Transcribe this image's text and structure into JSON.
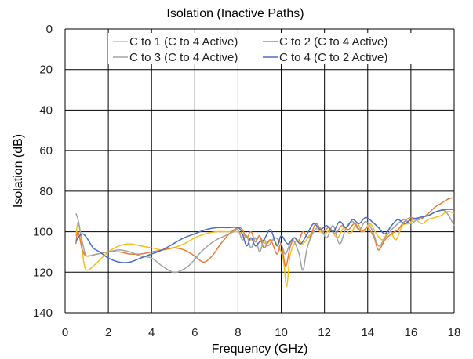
{
  "chart_data": {
    "type": "line",
    "title": "Isolation (Inactive Paths)",
    "xlabel": "Frequency (GHz)",
    "ylabel": "Isolation (dB)",
    "xlim": [
      0,
      18
    ],
    "ylim": [
      0,
      140
    ],
    "y_inverted": true,
    "x_ticks": [
      0,
      2,
      4,
      6,
      8,
      10,
      12,
      14,
      16,
      18
    ],
    "y_ticks": [
      0,
      20,
      40,
      60,
      80,
      100,
      120,
      140
    ],
    "grid": true,
    "legend_position": "top",
    "series": [
      {
        "name": "C to 1 (C to 4 Active)",
        "color": "#f2c01c",
        "points": [
          [
            0.5,
            102
          ],
          [
            0.6,
            95
          ],
          [
            0.7,
            100
          ],
          [
            0.8,
            110
          ],
          [
            0.9,
            117
          ],
          [
            1.0,
            119
          ],
          [
            1.2,
            118
          ],
          [
            1.5,
            115
          ],
          [
            2.0,
            110
          ],
          [
            2.5,
            107
          ],
          [
            3.0,
            106
          ],
          [
            3.5,
            107
          ],
          [
            4.0,
            108
          ],
          [
            4.5,
            109
          ],
          [
            5.0,
            108
          ],
          [
            5.5,
            106
          ],
          [
            6.0,
            103
          ],
          [
            6.5,
            101
          ],
          [
            7.0,
            100
          ],
          [
            7.5,
            100
          ],
          [
            8.0,
            100
          ],
          [
            8.3,
            102
          ],
          [
            8.6,
            104
          ],
          [
            9.0,
            103
          ],
          [
            9.3,
            106
          ],
          [
            9.6,
            104
          ],
          [
            9.9,
            108
          ],
          [
            10.1,
            114
          ],
          [
            10.25,
            127
          ],
          [
            10.4,
            112
          ],
          [
            10.6,
            106
          ],
          [
            10.8,
            104
          ],
          [
            11.0,
            106
          ],
          [
            11.3,
            102
          ],
          [
            11.6,
            99
          ],
          [
            12.0,
            101
          ],
          [
            12.3,
            99
          ],
          [
            12.6,
            103
          ],
          [
            12.9,
            98
          ],
          [
            13.2,
            101
          ],
          [
            13.5,
            96
          ],
          [
            13.8,
            100
          ],
          [
            14.1,
            96
          ],
          [
            14.4,
            101
          ],
          [
            14.7,
            104
          ],
          [
            15.0,
            99
          ],
          [
            15.3,
            104
          ],
          [
            15.6,
            97
          ],
          [
            15.9,
            96
          ],
          [
            16.2,
            94
          ],
          [
            16.5,
            96
          ],
          [
            16.8,
            94
          ],
          [
            17.1,
            93
          ],
          [
            17.4,
            92
          ],
          [
            17.7,
            90
          ],
          [
            18.0,
            91
          ]
        ]
      },
      {
        "name": "C to 2 (C to 4 Active)",
        "color": "#e87b35",
        "points": [
          [
            0.5,
            106
          ],
          [
            0.6,
            100
          ],
          [
            0.8,
            109
          ],
          [
            1.0,
            112
          ],
          [
            1.5,
            111
          ],
          [
            2.0,
            110
          ],
          [
            2.5,
            110
          ],
          [
            3.0,
            111
          ],
          [
            3.5,
            111
          ],
          [
            4.0,
            110
          ],
          [
            4.5,
            109
          ],
          [
            5.0,
            108
          ],
          [
            5.5,
            109
          ],
          [
            6.0,
            112
          ],
          [
            6.4,
            115
          ],
          [
            6.8,
            112
          ],
          [
            7.2,
            106
          ],
          [
            7.6,
            101
          ],
          [
            8.0,
            98
          ],
          [
            8.2,
            99
          ],
          [
            8.4,
            103
          ],
          [
            8.6,
            100
          ],
          [
            8.8,
            105
          ],
          [
            9.0,
            102
          ],
          [
            9.2,
            108
          ],
          [
            9.5,
            104
          ],
          [
            9.8,
            111
          ],
          [
            10.0,
            106
          ],
          [
            10.2,
            117
          ],
          [
            10.4,
            108
          ],
          [
            10.6,
            103
          ],
          [
            10.8,
            105
          ],
          [
            11.0,
            100
          ],
          [
            11.3,
            103
          ],
          [
            11.6,
            96
          ],
          [
            11.9,
            100
          ],
          [
            12.2,
            98
          ],
          [
            12.5,
            101
          ],
          [
            12.8,
            97
          ],
          [
            13.1,
            99
          ],
          [
            13.4,
            96
          ],
          [
            13.7,
            100
          ],
          [
            14.0,
            98
          ],
          [
            14.3,
            103
          ],
          [
            14.5,
            109
          ],
          [
            14.8,
            104
          ],
          [
            15.1,
            101
          ],
          [
            15.4,
            99
          ],
          [
            15.7,
            95
          ],
          [
            16.0,
            93
          ],
          [
            16.4,
            94
          ],
          [
            16.8,
            91
          ],
          [
            17.1,
            88
          ],
          [
            17.4,
            86
          ],
          [
            17.7,
            84
          ],
          [
            18.0,
            83
          ]
        ]
      },
      {
        "name": "C to 3 (C to 4 Active)",
        "color": "#a3a3a3",
        "points": [
          [
            0.5,
            91
          ],
          [
            0.6,
            94
          ],
          [
            0.7,
            100
          ],
          [
            0.9,
            110
          ],
          [
            1.0,
            112
          ],
          [
            1.5,
            111
          ],
          [
            2.0,
            110
          ],
          [
            2.5,
            109
          ],
          [
            3.0,
            110
          ],
          [
            3.5,
            112
          ],
          [
            4.0,
            113
          ],
          [
            4.5,
            117
          ],
          [
            5.0,
            120
          ],
          [
            5.4,
            119
          ],
          [
            5.8,
            116
          ],
          [
            6.2,
            111
          ],
          [
            6.6,
            107
          ],
          [
            7.0,
            104
          ],
          [
            7.4,
            102
          ],
          [
            7.8,
            100
          ],
          [
            8.0,
            99
          ],
          [
            8.2,
            104
          ],
          [
            8.4,
            102
          ],
          [
            8.6,
            108
          ],
          [
            8.8,
            103
          ],
          [
            9.0,
            110
          ],
          [
            9.2,
            104
          ],
          [
            9.4,
            107
          ],
          [
            9.7,
            103
          ],
          [
            10.0,
            106
          ],
          [
            10.2,
            111
          ],
          [
            10.5,
            104
          ],
          [
            10.8,
            110
          ],
          [
            11.0,
            119
          ],
          [
            11.2,
            108
          ],
          [
            11.5,
            100
          ],
          [
            11.8,
            98
          ],
          [
            12.1,
            103
          ],
          [
            12.4,
            97
          ],
          [
            12.7,
            106
          ],
          [
            13.0,
            98
          ],
          [
            13.3,
            95
          ],
          [
            13.6,
            99
          ],
          [
            13.9,
            95
          ],
          [
            14.2,
            99
          ],
          [
            14.5,
            107
          ],
          [
            14.8,
            103
          ],
          [
            15.1,
            99
          ],
          [
            15.4,
            96
          ],
          [
            15.7,
            94
          ],
          [
            16.0,
            96
          ],
          [
            16.4,
            93
          ],
          [
            16.8,
            92
          ],
          [
            17.2,
            90
          ],
          [
            17.6,
            90
          ],
          [
            18.0,
            97
          ]
        ]
      },
      {
        "name": "C to 4 (C to 2 Active)",
        "color": "#4b6ec4",
        "points": [
          [
            0.5,
            105
          ],
          [
            0.6,
            103
          ],
          [
            0.8,
            101
          ],
          [
            1.0,
            103
          ],
          [
            1.3,
            108
          ],
          [
            1.6,
            110
          ],
          [
            2.0,
            113
          ],
          [
            2.5,
            115
          ],
          [
            3.0,
            115
          ],
          [
            3.5,
            113
          ],
          [
            4.0,
            111
          ],
          [
            4.5,
            109
          ],
          [
            5.0,
            106
          ],
          [
            5.5,
            103
          ],
          [
            6.0,
            101
          ],
          [
            6.5,
            99
          ],
          [
            7.0,
            98
          ],
          [
            7.5,
            98
          ],
          [
            8.0,
            98
          ],
          [
            8.2,
            101
          ],
          [
            8.4,
            107
          ],
          [
            8.6,
            103
          ],
          [
            8.8,
            107
          ],
          [
            9.0,
            105
          ],
          [
            9.2,
            104
          ],
          [
            9.5,
            99
          ],
          [
            9.8,
            107
          ],
          [
            10.0,
            102
          ],
          [
            10.3,
            106
          ],
          [
            10.6,
            103
          ],
          [
            10.9,
            106
          ],
          [
            11.2,
            101
          ],
          [
            11.5,
            96
          ],
          [
            11.8,
            99
          ],
          [
            12.1,
            97
          ],
          [
            12.4,
            100
          ],
          [
            12.7,
            95
          ],
          [
            13.0,
            98
          ],
          [
            13.3,
            94
          ],
          [
            13.6,
            96
          ],
          [
            13.9,
            93
          ],
          [
            14.2,
            95
          ],
          [
            14.5,
            98
          ],
          [
            14.8,
            101
          ],
          [
            15.1,
            97
          ],
          [
            15.4,
            94
          ],
          [
            15.7,
            96
          ],
          [
            16.0,
            94
          ],
          [
            16.4,
            93
          ],
          [
            16.8,
            92
          ],
          [
            17.2,
            90
          ],
          [
            17.6,
            89
          ],
          [
            18.0,
            89
          ]
        ]
      }
    ]
  }
}
